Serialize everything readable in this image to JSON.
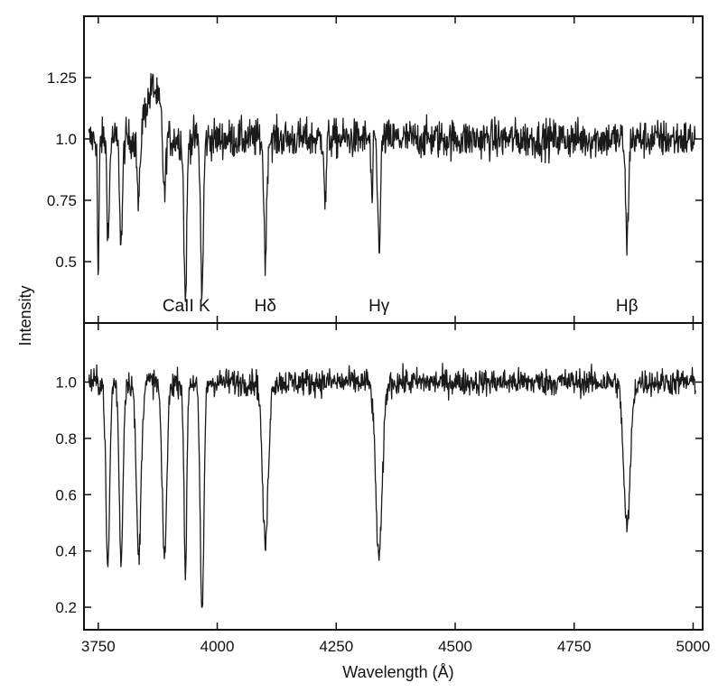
{
  "chart_data": {
    "type": "line",
    "layout": "two stacked panels sharing the x axis",
    "xlabel": "Wavelength (Å)",
    "ylabel": "Intensity",
    "xlim": [
      3720,
      5020
    ],
    "xticks": [
      3750,
      4000,
      4250,
      4500,
      4750,
      5000
    ],
    "xtick_labels": [
      "3750",
      "4000",
      "4250",
      "4500",
      "4750",
      "5000"
    ],
    "series_color": "#1a1a1a",
    "panels": [
      {
        "id": "top",
        "ylim": [
          0.25,
          1.5
        ],
        "yticks": [
          0.25,
          0.5,
          0.75,
          1.0,
          1.25
        ],
        "ytick_labels": [
          "",
          "0.5",
          "0.75",
          "1.0",
          "1.25"
        ],
        "continuum": 1.0,
        "noise": 0.075,
        "absorption_lines": [
          {
            "x": 3750,
            "depth": 0.58,
            "width": 1.6
          },
          {
            "x": 3771,
            "depth": 0.4,
            "width": 2.5
          },
          {
            "x": 3798,
            "depth": 0.42,
            "width": 3
          },
          {
            "x": 3835,
            "depth": 0.3,
            "width": 3
          },
          {
            "x": 3889,
            "depth": 0.3,
            "width": 3
          },
          {
            "x": 3933,
            "depth": 0.65,
            "width": 3
          },
          {
            "x": 3968,
            "depth": 0.62,
            "width": 3
          },
          {
            "x": 4101,
            "depth": 0.48,
            "width": 3
          },
          {
            "x": 4227,
            "depth": 0.28,
            "width": 2
          },
          {
            "x": 4325,
            "depth": 0.25,
            "width": 2
          },
          {
            "x": 4340,
            "depth": 0.43,
            "width": 3
          },
          {
            "x": 4861,
            "depth": 0.43,
            "width": 3
          }
        ],
        "rise": [
          {
            "from": 3850,
            "to": 3880,
            "amount": 0.22
          }
        ],
        "line_labels": [
          {
            "x": 3935,
            "text": "CaII K"
          },
          {
            "x": 4101,
            "text": "Hδ"
          },
          {
            "x": 4340,
            "text": "Hγ"
          },
          {
            "x": 4861,
            "text": "Hβ"
          }
        ]
      },
      {
        "id": "bottom",
        "ylim": [
          0.12,
          1.21
        ],
        "yticks": [
          0.2,
          0.4,
          0.6,
          0.8,
          1.0
        ],
        "ytick_labels": [
          "0.2",
          "0.4",
          "0.6",
          "0.8",
          "1.0"
        ],
        "continuum": 1.0,
        "noise": 0.045,
        "absorption_lines": [
          {
            "x": 3770,
            "depth": 0.66,
            "width": 4
          },
          {
            "x": 3798,
            "depth": 0.63,
            "width": 4
          },
          {
            "x": 3835,
            "depth": 0.62,
            "width": 5
          },
          {
            "x": 3889,
            "depth": 0.62,
            "width": 5
          },
          {
            "x": 3933,
            "depth": 0.68,
            "width": 3
          },
          {
            "x": 3968,
            "depth": 0.82,
            "width": 4
          },
          {
            "x": 4101,
            "depth": 0.58,
            "width": 6
          },
          {
            "x": 4340,
            "depth": 0.62,
            "width": 7
          },
          {
            "x": 4861,
            "depth": 0.52,
            "width": 7
          }
        ],
        "line_labels": []
      }
    ]
  }
}
